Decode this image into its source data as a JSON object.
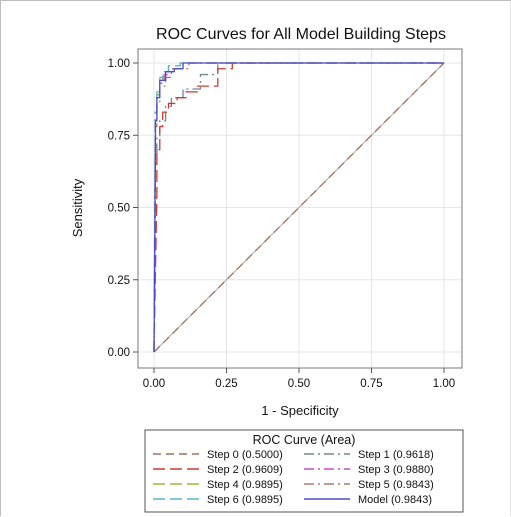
{
  "chart_data": {
    "type": "line",
    "title": "ROC Curves for All Model Building Steps",
    "xlabel": "1 - Specificity",
    "ylabel": "Sensitivity",
    "xlim": [
      0,
      1
    ],
    "ylim": [
      0,
      1
    ],
    "x_ticks": [
      "0.00",
      "0.25",
      "0.50",
      "0.75",
      "1.00"
    ],
    "y_ticks": [
      "0.00",
      "0.25",
      "0.50",
      "0.75",
      "1.00"
    ],
    "grid": true,
    "legend": {
      "title": "ROC Curve (Area)",
      "placement": "bottom",
      "columns": 2
    },
    "series": [
      {
        "name": "Step 0",
        "label": "Step 0  (0.5000)",
        "color": "#a0705a",
        "dash": "8,5",
        "x": [
          0,
          1
        ],
        "y": [
          0,
          1
        ]
      },
      {
        "name": "Step 1",
        "label": "Step 1  (0.9618)",
        "color": "#708a8a",
        "dash": "10,4,2,4",
        "x": [
          0,
          0.005,
          0.005,
          0.01,
          0.01,
          0.02,
          0.02,
          0.04,
          0.04,
          0.06,
          0.06,
          0.1,
          0.1,
          0.16,
          0.16,
          0.22,
          0.22,
          1
        ],
        "y": [
          0,
          0.5,
          0.65,
          0.65,
          0.74,
          0.74,
          0.8,
          0.8,
          0.85,
          0.85,
          0.88,
          0.88,
          0.91,
          0.91,
          0.96,
          0.96,
          1.0,
          1.0
        ]
      },
      {
        "name": "Step 2",
        "label": "Step 2  (0.9609)",
        "color": "#cc3b2f",
        "dash": "12,5",
        "x": [
          0,
          0.01,
          0.01,
          0.02,
          0.02,
          0.03,
          0.03,
          0.05,
          0.05,
          0.08,
          0.08,
          0.11,
          0.11,
          0.15,
          0.15,
          0.22,
          0.22,
          0.27,
          0.27,
          1
        ],
        "y": [
          0,
          0.55,
          0.7,
          0.7,
          0.78,
          0.78,
          0.83,
          0.83,
          0.86,
          0.86,
          0.88,
          0.88,
          0.9,
          0.9,
          0.92,
          0.92,
          0.98,
          0.98,
          1.0,
          1.0
        ]
      },
      {
        "name": "Step 3",
        "label": "Step 3  (0.9880)",
        "color": "#c64fc6",
        "dash": "10,4,2,4",
        "x": [
          0,
          0.004,
          0.004,
          0.01,
          0.01,
          0.02,
          0.02,
          0.035,
          0.035,
          0.05,
          0.05,
          0.1,
          0.1,
          1
        ],
        "y": [
          0,
          0.7,
          0.8,
          0.8,
          0.88,
          0.88,
          0.93,
          0.93,
          0.96,
          0.96,
          0.98,
          0.98,
          1.0,
          1.0
        ]
      },
      {
        "name": "Step 4",
        "label": "Step 4  (0.9895)",
        "color": "#a8b03a",
        "dash": "12,5",
        "x": [
          0,
          0.004,
          0.004,
          0.01,
          0.01,
          0.02,
          0.02,
          0.03,
          0.03,
          0.05,
          0.05,
          0.09,
          0.09,
          1
        ],
        "y": [
          0,
          0.72,
          0.82,
          0.82,
          0.89,
          0.89,
          0.94,
          0.94,
          0.97,
          0.97,
          0.99,
          0.99,
          1.0,
          1.0
        ]
      },
      {
        "name": "Step 5",
        "label": "Step 5  (0.9843)",
        "color": "#b07a66",
        "dash": "10,4,2,4",
        "x": [
          0,
          0.005,
          0.005,
          0.01,
          0.01,
          0.02,
          0.02,
          0.04,
          0.04,
          0.06,
          0.06,
          0.12,
          0.12,
          1
        ],
        "y": [
          0,
          0.68,
          0.78,
          0.78,
          0.86,
          0.86,
          0.92,
          0.92,
          0.95,
          0.95,
          0.98,
          0.98,
          1.0,
          1.0
        ]
      },
      {
        "name": "Step 6",
        "label": "Step 6  (0.9895)",
        "color": "#5ab4cf",
        "dash": "12,5",
        "x": [
          0,
          0.004,
          0.004,
          0.01,
          0.01,
          0.02,
          0.02,
          0.03,
          0.03,
          0.05,
          0.05,
          0.09,
          0.09,
          1
        ],
        "y": [
          0,
          0.73,
          0.83,
          0.83,
          0.9,
          0.9,
          0.95,
          0.95,
          0.97,
          0.97,
          0.99,
          0.99,
          1.0,
          1.0
        ]
      },
      {
        "name": "Model",
        "label": "Model  (0.9843)",
        "color": "#4b4bd0",
        "dash": "",
        "x": [
          0,
          0.005,
          0.005,
          0.01,
          0.01,
          0.02,
          0.02,
          0.04,
          0.04,
          0.07,
          0.07,
          0.1,
          0.1,
          1
        ],
        "y": [
          0,
          0.7,
          0.8,
          0.8,
          0.88,
          0.88,
          0.94,
          0.94,
          0.97,
          0.97,
          0.98,
          0.98,
          1.0,
          1.0
        ]
      }
    ],
    "reference_line": {
      "x": [
        0,
        1
      ],
      "y": [
        0,
        1
      ],
      "color": "#a8a8a8"
    }
  }
}
